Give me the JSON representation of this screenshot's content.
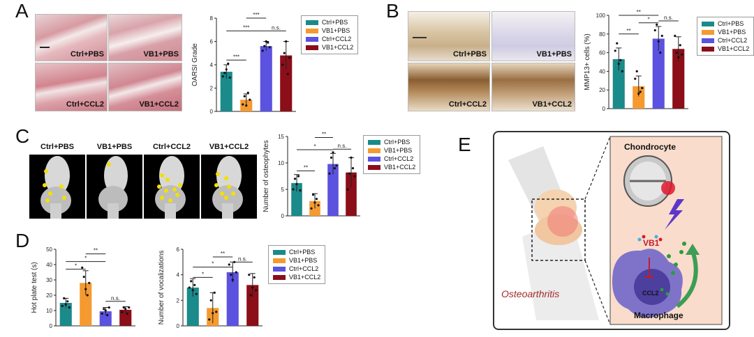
{
  "panels": {
    "a": "A",
    "b": "B",
    "c": "C",
    "d": "D",
    "e": "E"
  },
  "colors": {
    "ctrl_pbs": "#1a8a8a",
    "vb1_pbs": "#f59a30",
    "ctrl_ccl2": "#5b52e0",
    "vb1_ccl2": "#8b0e18"
  },
  "legend": [
    "Ctrl+PBS",
    "VB1+PBS",
    "Ctrl+CCL2",
    "VB1+CCL2"
  ],
  "panel_a": {
    "captions": [
      "Ctrl+PBS",
      "VB1+PBS",
      "Ctrl+CCL2",
      "VB1+CCL2"
    ]
  },
  "panel_b": {
    "captions": [
      "Ctrl+PBS",
      "VB1+PBS",
      "Ctrl+CCL2",
      "VB1+CCL2"
    ]
  },
  "panel_c": {
    "captions": [
      "Ctrl+PBS",
      "VB1+PBS",
      "Ctrl+CCL2",
      "VB1+CCL2"
    ]
  },
  "panel_e": {
    "chondrocyte": "Chondrocyte",
    "vb1": "VB1",
    "ccl2": "CCL2",
    "macrophage": "Macrophage",
    "oa": "Osteoarthritis"
  },
  "chart_data": [
    {
      "id": "A",
      "type": "bar",
      "categories": [
        "Ctrl+PBS",
        "VB1+PBS",
        "Ctrl+CCL2",
        "VB1+CCL2"
      ],
      "values": [
        3.4,
        1.0,
        5.6,
        4.8
      ],
      "errors": [
        0.6,
        0.5,
        0.4,
        1.2
      ],
      "points": [
        [
          3.0,
          3.3,
          3.6,
          4.1,
          2.9
        ],
        [
          0.6,
          1.3,
          0.5,
          1.6,
          1.0
        ],
        [
          5.2,
          5.6,
          6.0,
          5.9,
          5.5
        ],
        [
          4.0,
          5.0,
          6.0,
          3.2,
          4.6
        ]
      ],
      "ylabel": "OARSI Grade",
      "ylim": [
        0,
        8
      ],
      "yticks": [
        0,
        2,
        4,
        6,
        8
      ],
      "sig": [
        {
          "a": 0,
          "b": 1,
          "t": "***",
          "y": 4.4
        },
        {
          "a": 0,
          "b": 2,
          "t": "***",
          "y": 6.9
        },
        {
          "a": 1,
          "b": 2,
          "t": "***",
          "y": 8.0
        },
        {
          "a": 2,
          "b": 3,
          "t": "n.s.",
          "y": 6.9
        }
      ]
    },
    {
      "id": "B",
      "type": "bar",
      "categories": [
        "Ctrl+PBS",
        "VB1+PBS",
        "Ctrl+CCL2",
        "VB1+CCL2"
      ],
      "values": [
        53,
        24,
        75,
        64
      ],
      "errors": [
        12,
        11,
        13,
        13
      ],
      "points": [
        [
          62,
          70,
          48,
          52,
          40
        ],
        [
          32,
          40,
          16,
          18,
          22
        ],
        [
          84,
          90,
          72,
          60,
          78
        ],
        [
          78,
          60,
          55,
          68,
          58
        ]
      ],
      "ylabel": "MMP13+ cells (%)",
      "ylim": [
        0,
        100
      ],
      "yticks": [
        0,
        20,
        40,
        60,
        80,
        100
      ],
      "sig": [
        {
          "a": 0,
          "b": 1,
          "t": "**",
          "y": 80
        },
        {
          "a": 1,
          "b": 2,
          "t": "*",
          "y": 92
        },
        {
          "a": 2,
          "b": 3,
          "t": "n.s.",
          "y": 94
        },
        {
          "a": 0,
          "b": 2,
          "t": "**",
          "y": 100
        }
      ]
    },
    {
      "id": "C",
      "type": "bar",
      "categories": [
        "Ctrl+PBS",
        "VB1+PBS",
        "Ctrl+CCL2",
        "VB1+CCL2"
      ],
      "values": [
        6.2,
        2.8,
        9.8,
        8.2
      ],
      "errors": [
        1.6,
        1.4,
        2.0,
        2.8
      ],
      "points": [
        [
          5.0,
          7.0,
          6.0,
          7.5,
          4.8
        ],
        [
          1.4,
          4.0,
          2.5,
          3.2,
          2.0
        ],
        [
          8.0,
          11.0,
          12.0,
          9.0,
          9.5
        ],
        [
          5.0,
          8.0,
          11.0,
          9.0,
          7.5
        ]
      ],
      "ylabel": "Number of osteophytes",
      "ylim": [
        0,
        15
      ],
      "yticks": [
        0,
        5,
        10,
        15
      ],
      "sig": [
        {
          "a": 0,
          "b": 1,
          "t": "**",
          "y": 8.5
        },
        {
          "a": 0,
          "b": 2,
          "t": "*",
          "y": 12.5
        },
        {
          "a": 1,
          "b": 2,
          "t": "**",
          "y": 14.8
        },
        {
          "a": 2,
          "b": 3,
          "t": "n.s.",
          "y": 12.6
        }
      ]
    },
    {
      "id": "D1",
      "type": "bar",
      "categories": [
        "Ctrl+PBS",
        "VB1+PBS",
        "Ctrl+CCL2",
        "VB1+CCL2"
      ],
      "values": [
        15,
        28,
        9.5,
        10.5
      ],
      "errors": [
        3,
        8,
        2.5,
        2
      ],
      "points": [
        [
          13,
          18,
          14,
          16,
          12
        ],
        [
          38,
          32,
          24,
          20,
          28
        ],
        [
          8,
          11,
          10,
          7,
          12
        ],
        [
          9,
          12,
          11,
          8,
          12
        ]
      ],
      "ylabel": "Hot plate test (s)",
      "ylim": [
        0,
        50
      ],
      "yticks": [
        0,
        10,
        20,
        30,
        40,
        50
      ],
      "sig": [
        {
          "a": 0,
          "b": 1,
          "t": "*",
          "y": 37
        },
        {
          "a": 0,
          "b": 2,
          "t": "*",
          "y": 42
        },
        {
          "a": 1,
          "b": 2,
          "t": "**",
          "y": 47
        },
        {
          "a": 2,
          "b": 3,
          "t": "n.s.",
          "y": 16
        }
      ]
    },
    {
      "id": "D2",
      "type": "bar",
      "categories": [
        "Ctrl+PBS",
        "VB1+PBS",
        "Ctrl+CCL2",
        "VB1+CCL2"
      ],
      "values": [
        3.0,
        1.4,
        4.2,
        3.2
      ],
      "errors": [
        0.7,
        1.2,
        0.8,
        0.9
      ],
      "points": [
        [
          3.0,
          3.5,
          2.8,
          3.2,
          2.5
        ],
        [
          0.5,
          2.0,
          1.0,
          2.6,
          1.1
        ],
        [
          4.8,
          4.0,
          3.6,
          5.0,
          4.2
        ],
        [
          4.0,
          2.4,
          3.0,
          3.8,
          2.8
        ]
      ],
      "ylabel": "Number of vocalizations",
      "ylim": [
        0,
        6
      ],
      "yticks": [
        0,
        2,
        4,
        6
      ],
      "sig": [
        {
          "a": 0,
          "b": 1,
          "t": "*",
          "y": 3.8
        },
        {
          "a": 0,
          "b": 2,
          "t": "*",
          "y": 4.6
        },
        {
          "a": 1,
          "b": 2,
          "t": "**",
          "y": 5.4
        },
        {
          "a": 2,
          "b": 3,
          "t": "n.s.",
          "y": 5.0
        }
      ]
    }
  ]
}
